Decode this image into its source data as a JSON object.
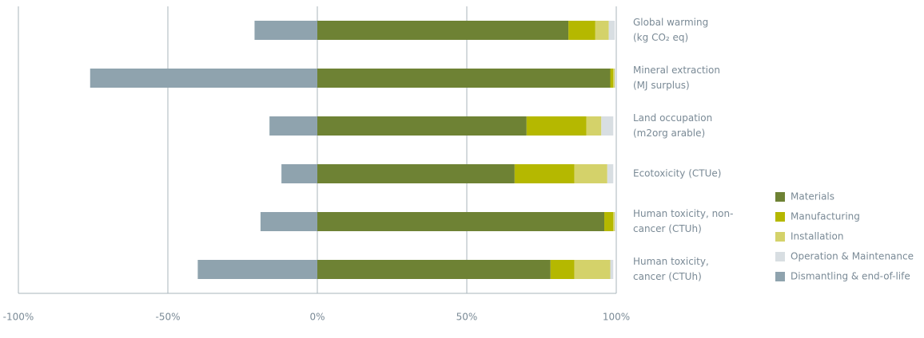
{
  "chart_data": {
    "type": "stacked-barh",
    "categories": [
      [
        "Global warming",
        "(kg CO₂ eq)"
      ],
      [
        "Mineral extraction",
        "(MJ surplus)"
      ],
      [
        "Land occupation",
        "(m2org arable)"
      ],
      [
        "Ecotoxicity (CTUe)"
      ],
      [
        "Human toxicity, non-",
        "cancer (CTUh)"
      ],
      [
        "Human toxicity,",
        "cancer (CTUh)"
      ]
    ],
    "series": [
      {
        "name": "Materials",
        "color": "#6e8234",
        "values": [
          84,
          98,
          70,
          66,
          96,
          78
        ]
      },
      {
        "name": "Manufacturing",
        "color": "#b5b800",
        "values": [
          9,
          1,
          20,
          20,
          3,
          8
        ]
      },
      {
        "name": "Installation",
        "color": "#d4d26a",
        "values": [
          4.5,
          0.5,
          5,
          11,
          0.5,
          12
        ]
      },
      {
        "name": "Operation & Maintenance",
        "color": "#d8dee2",
        "values": [
          2,
          0.5,
          4,
          2,
          0.5,
          1
        ]
      },
      {
        "name": "Dismantling & end-of-life",
        "color": "#8fa3ae",
        "values": [
          -21,
          -76,
          -16,
          -12,
          -19,
          -40
        ]
      }
    ],
    "xlim": [
      -100,
      100
    ],
    "xticks": [
      {
        "value": -100,
        "label": "-100%"
      },
      {
        "value": -50,
        "label": "-50%"
      },
      {
        "value": 0,
        "label": "0%"
      },
      {
        "value": 50,
        "label": "50%"
      },
      {
        "value": 100,
        "label": "100%"
      }
    ],
    "grid": true,
    "legend": "right"
  }
}
